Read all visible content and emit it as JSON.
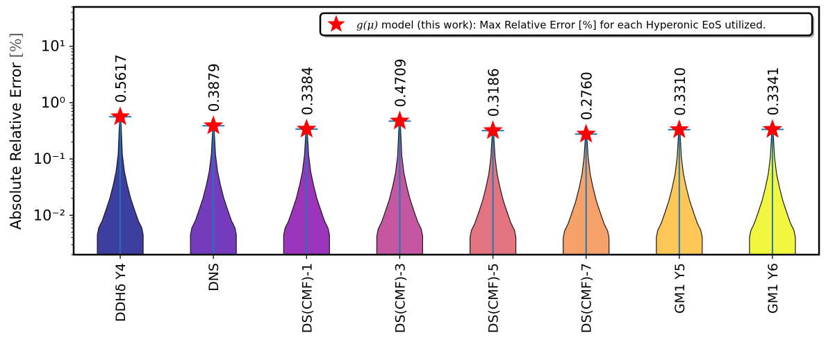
{
  "chart_data": {
    "type": "violin",
    "ylabel": "Absolute Relative Error [%]",
    "yscale": "log",
    "ylim": [
      0.002,
      50
    ],
    "ytick_values": [
      0.01,
      0.1,
      1,
      10
    ],
    "ytick_labels": [
      "10⁻²",
      "10⁻¹",
      "10⁰",
      "10¹"
    ],
    "categories": [
      "DDHδ Y4",
      "DNS",
      "DS(CMF)-1",
      "DS(CMF)-3",
      "DS(CMF)-5",
      "DS(CMF)-7",
      "GM1 Y5",
      "GM1 Y6"
    ],
    "max_errors": [
      0.5617,
      0.3879,
      0.3384,
      0.4709,
      0.3186,
      0.276,
      0.331,
      0.3341
    ],
    "max_labels": [
      "0.5617",
      "0.3879",
      "0.3384",
      "0.4709",
      "0.3186",
      "0.2760",
      "0.3310",
      "0.3341"
    ],
    "colors": [
      "#1c1c8f",
      "#5c1ab0",
      "#8b10b0",
      "#bb3a92",
      "#de5b6a",
      "#f4914f",
      "#fbbd3a",
      "#f0f51c"
    ],
    "legend": {
      "location": "upper-right",
      "marker": "red-star",
      "math": "g(μ)",
      "text_a": " model (this work): Max Relative Error [",
      "math2": "%",
      "text_b": "] for each Hyperonic EoS utilized."
    },
    "marker_color": "#ff0000",
    "stem_color": "#1f77b4",
    "grid": false
  }
}
